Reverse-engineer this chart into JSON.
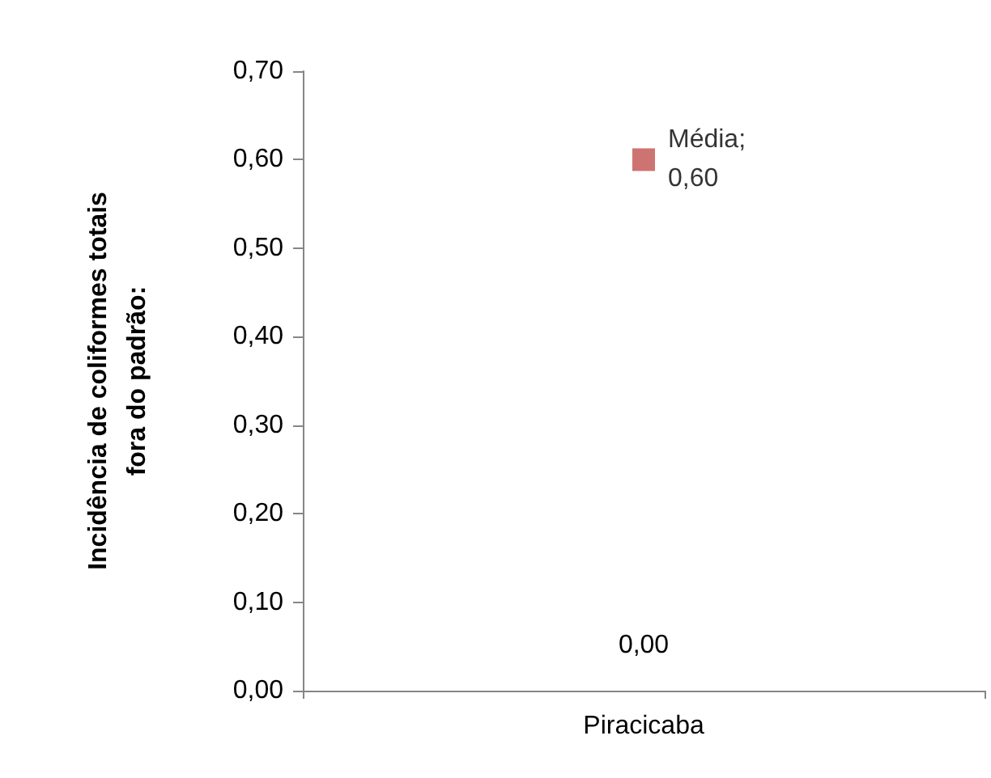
{
  "chart_data": {
    "type": "scatter",
    "ylabel": "Incidência de coliformes totais fora do padrão:",
    "categories": [
      "Piracicaba"
    ],
    "series": [
      {
        "name": "Média;",
        "color": "#c0504d",
        "marker": "square",
        "values": [
          0.6
        ],
        "value_labels": [
          "0,60"
        ]
      }
    ],
    "annotations": [
      "0,00"
    ],
    "ylim": [
      0,
      0.7
    ],
    "yticks": [
      {
        "value": 0,
        "label": "0,00"
      },
      {
        "value": 0.1,
        "label": "0,10"
      },
      {
        "value": 0.2,
        "label": "0,20"
      },
      {
        "value": 0.3,
        "label": "0,30"
      },
      {
        "value": 0.4,
        "label": "0,40"
      },
      {
        "value": 0.5,
        "label": "0,50"
      },
      {
        "value": 0.6,
        "label": "0,60"
      },
      {
        "value": 0.7,
        "label": "0,70"
      }
    ],
    "grid": false,
    "legend": false
  }
}
